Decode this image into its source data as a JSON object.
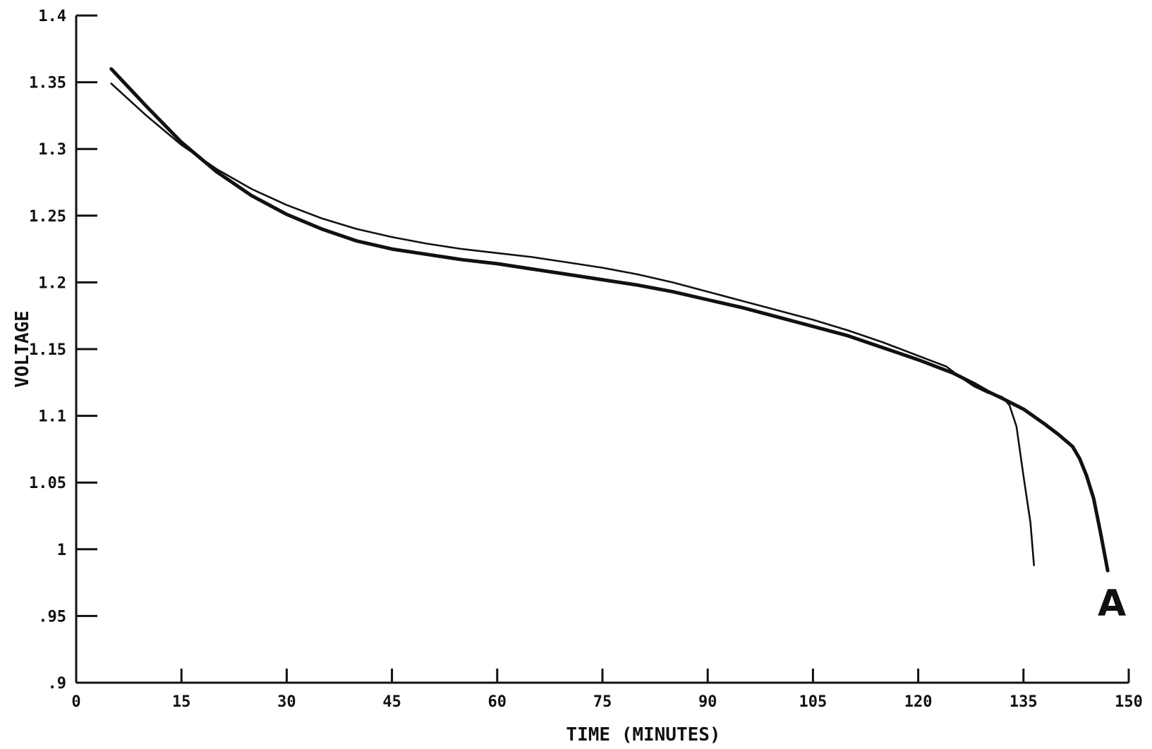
{
  "chart_data": {
    "type": "line",
    "title": "",
    "xlabel": "TIME  (MINUTES)",
    "ylabel": "VOLTAGE",
    "xlim": [
      0,
      150
    ],
    "ylim": [
      0.9,
      1.4
    ],
    "x_ticks": [
      0,
      15,
      30,
      45,
      60,
      75,
      90,
      105,
      120,
      135,
      150
    ],
    "x_tick_labels": [
      "0",
      "15",
      "30",
      "45",
      "60",
      "75",
      "90",
      "105",
      "120",
      "135",
      "150"
    ],
    "y_ticks": [
      0.9,
      0.95,
      1.0,
      1.05,
      1.1,
      1.15,
      1.2,
      1.25,
      1.3,
      1.35,
      1.4
    ],
    "y_tick_labels": [
      ".9",
      ".95",
      "1",
      "1.05",
      "1.1",
      "1.15",
      "1.2",
      "1.25",
      "1.3",
      "1.35",
      "1.4"
    ],
    "grid": false,
    "legend": "none",
    "series": [
      {
        "color": "#111111",
        "line_style": "thick",
        "x": [
          5,
          10,
          15,
          20,
          25,
          30,
          35,
          40,
          45,
          50,
          55,
          60,
          65,
          70,
          75,
          80,
          85,
          90,
          95,
          100,
          105,
          110,
          115,
          120,
          125,
          128,
          130,
          132,
          135,
          138,
          140,
          142,
          143,
          144,
          145,
          146,
          147
        ],
        "y": [
          1.36,
          1.332,
          1.305,
          1.283,
          1.265,
          1.251,
          1.24,
          1.231,
          1.225,
          1.221,
          1.217,
          1.214,
          1.21,
          1.206,
          1.202,
          1.198,
          1.193,
          1.187,
          1.181,
          1.174,
          1.167,
          1.16,
          1.151,
          1.142,
          1.132,
          1.124,
          1.118,
          1.113,
          1.105,
          1.094,
          1.086,
          1.077,
          1.068,
          1.055,
          1.038,
          1.012,
          0.984
        ]
      },
      {
        "color": "#111111",
        "line_style": "thin",
        "x": [
          5,
          10,
          15,
          20,
          25,
          30,
          35,
          40,
          45,
          50,
          55,
          60,
          65,
          70,
          75,
          80,
          85,
          90,
          95,
          100,
          105,
          110,
          115,
          120,
          124,
          126,
          128,
          130,
          131,
          132,
          133,
          134,
          135,
          136,
          136.5
        ],
        "y": [
          1.349,
          1.325,
          1.303,
          1.285,
          1.27,
          1.258,
          1.248,
          1.24,
          1.234,
          1.229,
          1.225,
          1.222,
          1.219,
          1.215,
          1.211,
          1.206,
          1.2,
          1.193,
          1.186,
          1.179,
          1.172,
          1.164,
          1.155,
          1.145,
          1.137,
          1.129,
          1.122,
          1.117,
          1.116,
          1.114,
          1.108,
          1.092,
          1.055,
          1.02,
          0.988
        ]
      }
    ],
    "annotations": [
      {
        "text": "A",
        "x": 147,
        "y": 0.963
      }
    ]
  }
}
